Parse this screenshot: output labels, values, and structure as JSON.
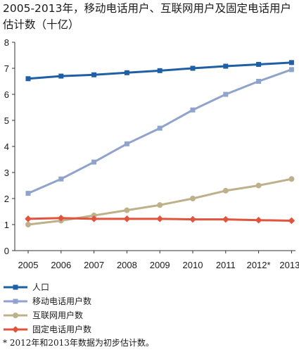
{
  "title": "2005-2013年，移动电话用户、互联网用户及固定电话用户估计数（十亿）",
  "footnote": "* 2012年和2013年数据为初步估计数。",
  "chart_data": {
    "type": "line",
    "title": "2005-2013年，移动电话用户、互联网用户及固定电话用户估计数（十亿）",
    "xlabel": "",
    "ylabel": "",
    "categories": [
      "2005",
      "2006",
      "2007",
      "2008",
      "2009",
      "2010",
      "2011",
      "2012*",
      "2013*"
    ],
    "ylim": [
      0,
      8
    ],
    "yticks": [
      0,
      1,
      2,
      3,
      4,
      5,
      6,
      7,
      8
    ],
    "grid": false,
    "legend_placement": "bottom",
    "series": [
      {
        "name": "人口",
        "color": "#1f5fa6",
        "marker": "square",
        "values": [
          6.6,
          6.7,
          6.75,
          6.83,
          6.91,
          7.0,
          7.08,
          7.15,
          7.22
        ]
      },
      {
        "name": "移动电话用户数",
        "color": "#8fa3cc",
        "marker": "square",
        "values": [
          2.2,
          2.75,
          3.4,
          4.1,
          4.7,
          5.4,
          6.0,
          6.5,
          6.95
        ]
      },
      {
        "name": "互联网用户数",
        "color": "#bfb08c",
        "marker": "circle",
        "values": [
          1.0,
          1.15,
          1.35,
          1.55,
          1.75,
          2.0,
          2.3,
          2.5,
          2.75
        ]
      },
      {
        "name": "固定电话用户数",
        "color": "#e0533c",
        "marker": "diamond",
        "values": [
          1.22,
          1.25,
          1.22,
          1.22,
          1.22,
          1.2,
          1.2,
          1.17,
          1.15
        ]
      }
    ]
  }
}
